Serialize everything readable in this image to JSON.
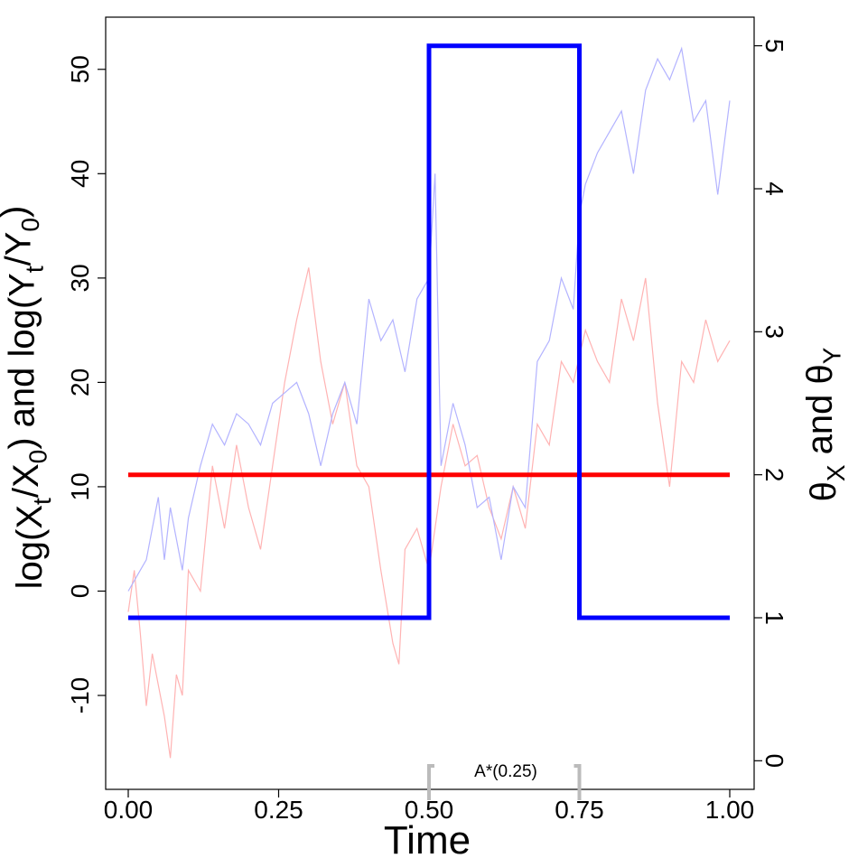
{
  "chart_data": {
    "type": "line",
    "title": "",
    "xlabel": "Time",
    "ylabel_left": "log(X_t/X_0) and log(Y_t/Y_0)",
    "ylabel_right": "θ_X and θ_Y",
    "xlim": [
      0,
      1
    ],
    "ylim_left": [
      -19,
      55
    ],
    "ylim_right": [
      -0.2,
      5.2
    ],
    "x_ticks": [
      "0.00",
      "0.25",
      "0.50",
      "0.75",
      "1.00"
    ],
    "y_left_ticks": [
      "-10",
      "0",
      "10",
      "20",
      "30",
      "40",
      "50"
    ],
    "y_right_ticks": [
      "0",
      "1",
      "2",
      "3",
      "4",
      "5"
    ],
    "annotation": {
      "text": "A*(0.25)",
      "x_start": 0.5,
      "x_end": 0.75
    },
    "colors": {
      "theta_x": "#ff0000",
      "theta_y": "#0000ff",
      "log_x_path": "#ffb3b3",
      "log_y_path": "#b3b3ff",
      "bracket": "#bbbbbb"
    },
    "series": [
      {
        "key": "theta_x",
        "axis": "right",
        "x": [
          0,
          1
        ],
        "values": [
          2,
          2
        ]
      },
      {
        "key": "theta_y",
        "axis": "right",
        "x": [
          0,
          0.5,
          0.5,
          0.75,
          0.75,
          1
        ],
        "values": [
          1,
          1,
          5,
          5,
          1,
          1
        ]
      },
      {
        "key": "log_x_path",
        "axis": "left",
        "x": [
          0,
          0.01,
          0.02,
          0.03,
          0.04,
          0.05,
          0.06,
          0.07,
          0.08,
          0.09,
          0.1,
          0.12,
          0.14,
          0.16,
          0.18,
          0.2,
          0.22,
          0.24,
          0.26,
          0.28,
          0.3,
          0.32,
          0.34,
          0.36,
          0.38,
          0.4,
          0.42,
          0.44,
          0.45,
          0.46,
          0.48,
          0.5,
          0.52,
          0.54,
          0.56,
          0.58,
          0.6,
          0.62,
          0.64,
          0.66,
          0.68,
          0.7,
          0.72,
          0.74,
          0.76,
          0.78,
          0.8,
          0.82,
          0.84,
          0.86,
          0.88,
          0.9,
          0.92,
          0.94,
          0.96,
          0.98,
          1
        ],
        "values": [
          -2,
          2,
          -4,
          -11,
          -6,
          -9,
          -12,
          -16,
          -8,
          -10,
          2,
          0,
          12,
          6,
          14,
          8,
          4,
          12,
          20,
          26,
          31,
          22,
          16,
          20,
          12,
          10,
          2,
          -5,
          -7,
          4,
          6,
          2,
          10,
          16,
          12,
          13,
          8,
          5,
          10,
          6,
          16,
          14,
          22,
          20,
          25,
          22,
          20,
          28,
          24,
          30,
          18,
          10,
          22,
          20,
          26,
          22,
          24
        ]
      },
      {
        "key": "log_y_path",
        "axis": "left",
        "x": [
          0,
          0.01,
          0.02,
          0.03,
          0.04,
          0.05,
          0.06,
          0.07,
          0.08,
          0.09,
          0.1,
          0.12,
          0.14,
          0.16,
          0.18,
          0.2,
          0.22,
          0.24,
          0.26,
          0.28,
          0.3,
          0.32,
          0.34,
          0.36,
          0.38,
          0.4,
          0.42,
          0.44,
          0.46,
          0.48,
          0.5,
          0.51,
          0.52,
          0.54,
          0.56,
          0.58,
          0.6,
          0.62,
          0.64,
          0.66,
          0.68,
          0.7,
          0.72,
          0.74,
          0.75,
          0.76,
          0.78,
          0.8,
          0.82,
          0.84,
          0.86,
          0.88,
          0.9,
          0.92,
          0.94,
          0.96,
          0.98,
          1
        ],
        "values": [
          0,
          1,
          2,
          3,
          6,
          9,
          3,
          8,
          5,
          2,
          7,
          12,
          16,
          14,
          17,
          16,
          14,
          18,
          19,
          20,
          17,
          12,
          17,
          20,
          16,
          28,
          24,
          26,
          21,
          28,
          30,
          40,
          12,
          18,
          14,
          8,
          9,
          3,
          10,
          8,
          22,
          24,
          30,
          27,
          36,
          39,
          42,
          44,
          46,
          40,
          48,
          51,
          49,
          52,
          45,
          47,
          38,
          47
        ]
      }
    ]
  }
}
